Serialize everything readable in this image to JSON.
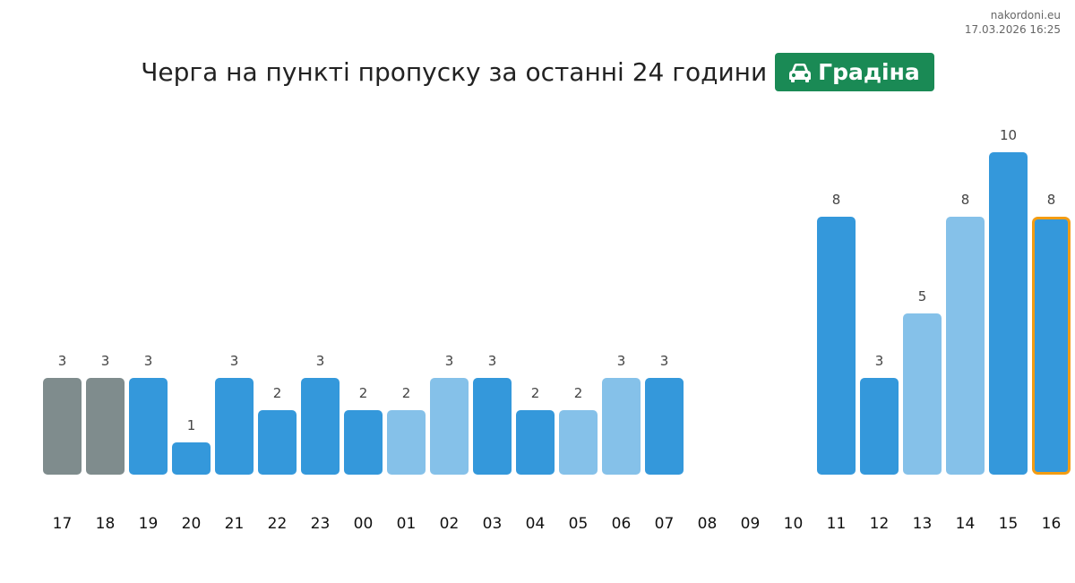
{
  "source": {
    "site": "nakordoni.eu",
    "timestamp": "17.03.2026 16:25"
  },
  "header": {
    "title": "Черга на пункті пропуску за останні 24 години"
  },
  "checkpoint": {
    "icon": "car-icon",
    "name": "Градіна",
    "color": "#1a8a55"
  },
  "colors": {
    "history": "#7f8c8d",
    "normal": "#3498db",
    "light": "#85c1e9",
    "current_border": "#f39c12"
  },
  "chart_data": {
    "type": "bar",
    "title": "Черга на пункті пропуску за останні 24 години",
    "xlabel": "",
    "ylabel": "",
    "ylim": [
      0,
      10
    ],
    "grid": false,
    "categories": [
      "17",
      "18",
      "19",
      "20",
      "21",
      "22",
      "23",
      "00",
      "01",
      "02",
      "03",
      "04",
      "05",
      "06",
      "07",
      "08",
      "09",
      "10",
      "11",
      "12",
      "13",
      "14",
      "15",
      "16"
    ],
    "values": [
      3,
      3,
      3,
      1,
      3,
      2,
      3,
      2,
      2,
      3,
      3,
      2,
      2,
      3,
      3,
      null,
      null,
      null,
      8,
      3,
      5,
      8,
      10,
      8
    ],
    "bar_style": [
      "history",
      "history",
      "normal",
      "normal",
      "normal",
      "normal",
      "normal",
      "normal",
      "light",
      "light",
      "normal",
      "normal",
      "light",
      "light",
      "normal",
      null,
      null,
      null,
      "normal",
      "normal",
      "light",
      "light",
      "normal",
      "normal"
    ],
    "current_index": 23
  }
}
